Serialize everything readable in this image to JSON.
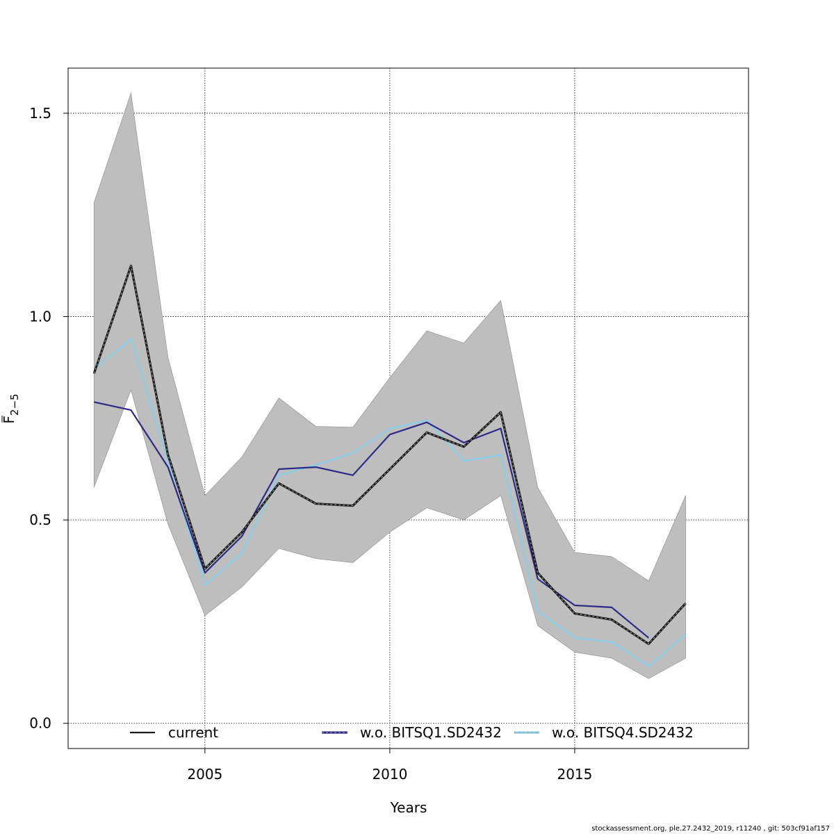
{
  "chart_data": {
    "type": "line",
    "xlabel": "Years",
    "ylabel": {
      "base": "F",
      "subscript": "2−5"
    },
    "xlim": [
      2001.3,
      2019.7
    ],
    "ylim": [
      -0.062,
      1.611
    ],
    "x_ticks": [
      2005,
      2010,
      2015
    ],
    "x_tick_labels": [
      "2005",
      "2010",
      "2015"
    ],
    "y_ticks": [
      0.0,
      0.5,
      1.0,
      1.5
    ],
    "y_tick_labels": [
      "0.0",
      "0.5",
      "1.0",
      "1.5"
    ],
    "grid": true,
    "x": [
      2002,
      2003,
      2004,
      2005,
      2006,
      2007,
      2008,
      2009,
      2010,
      2011,
      2012,
      2013,
      2014,
      2015,
      2016,
      2017,
      2018
    ],
    "confidence_band": {
      "lower": [
        0.58,
        0.82,
        0.49,
        0.265,
        0.335,
        0.43,
        0.405,
        0.395,
        0.47,
        0.53,
        0.5,
        0.56,
        0.24,
        0.175,
        0.16,
        0.11,
        0.16
      ],
      "upper": [
        1.28,
        1.55,
        0.9,
        0.56,
        0.655,
        0.8,
        0.73,
        0.728,
        0.85,
        0.965,
        0.935,
        1.04,
        0.58,
        0.42,
        0.41,
        0.35,
        0.56
      ],
      "color": "#bebebe"
    },
    "series": [
      {
        "name": "current",
        "color": "#1a1a1a",
        "style": "dashed-double",
        "values": [
          0.86,
          1.125,
          0.66,
          0.38,
          0.47,
          0.59,
          0.54,
          0.535,
          0.625,
          0.715,
          0.68,
          0.765,
          0.37,
          0.27,
          0.255,
          0.195,
          0.295
        ]
      },
      {
        "name": "w.o. BITSQ1.SD2432",
        "color": "#2d2a87",
        "style": "solid",
        "values": [
          0.79,
          0.77,
          0.63,
          0.37,
          0.46,
          0.625,
          0.63,
          0.61,
          0.71,
          0.74,
          0.69,
          0.725,
          0.355,
          0.29,
          0.285,
          0.21,
          null
        ]
      },
      {
        "name": "w.o. BITSQ4.SD2432",
        "color": "#87ceeb",
        "style": "solid",
        "values": [
          0.87,
          0.945,
          0.64,
          0.34,
          0.42,
          0.61,
          0.635,
          0.665,
          0.725,
          0.745,
          0.645,
          0.66,
          0.275,
          0.21,
          0.2,
          0.14,
          0.22
        ]
      }
    ],
    "legend": {
      "placement": "bottom",
      "entries": [
        {
          "label": "current",
          "color": "#1a1a1a",
          "style": "solid"
        },
        {
          "label": "w.o. BITSQ1.SD2432",
          "color": "#2d2a87",
          "style": "dashed-double"
        },
        {
          "label": "w.o. BITSQ4.SD2432",
          "color": "#87ceeb",
          "style": "dashed-double"
        }
      ]
    }
  },
  "footer": "stockassessment.org, ple.27.2432_2019, r11240 , git: 503cf91af157"
}
